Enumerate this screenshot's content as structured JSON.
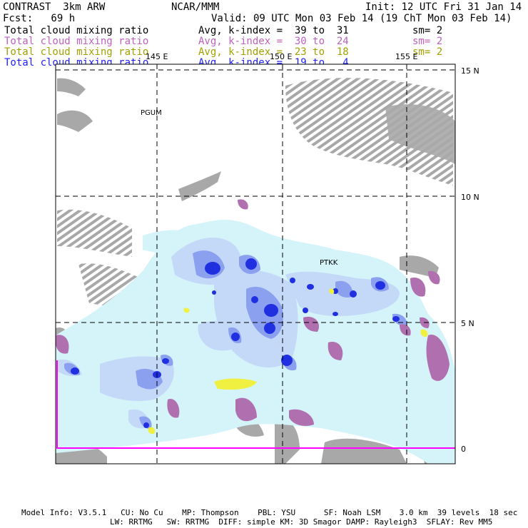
{
  "header": {
    "model": "CONTRAST  3km ARW",
    "org": "NCAR/MMM",
    "init": "Init: 12 UTC Fri 31 Jan 14",
    "fcst": "Fcst:   69 h",
    "valid": "Valid: 09 UTC Mon 03 Feb 14 (19 ChT Mon 03 Feb 14)"
  },
  "legend": {
    "rows": [
      {
        "field": "Total cloud mixing ratio",
        "range": "Avg, k-index =  39 to  31",
        "sm": "sm= 2",
        "color": "#000000"
      },
      {
        "field": "Total cloud mixing ratio",
        "range": "Avg, k-index =  30 to  24",
        "sm": "sm= 2",
        "color": "#c060c0"
      },
      {
        "field": "Total cloud mixing ratio",
        "range": "Avg, k-index =  23 to  18",
        "sm": "sm= 2",
        "color": "#a0a000"
      },
      {
        "field": "Total cloud mixing ratio",
        "range": "Avg, k-index =  19 to   4",
        "sm": "",
        "color": "#2020ff"
      }
    ]
  },
  "map": {
    "lon_labels": [
      "145 E",
      "150 E",
      "155 E"
    ],
    "lat_labels": [
      "15 N",
      "10 N",
      "5 N",
      "0"
    ],
    "stations": [
      "PGUM",
      "PTKK"
    ],
    "colors": {
      "gray": "#a8a8a8",
      "lightcyan": "#d4f4fa",
      "lightblue": "#c4d8f8",
      "midblue": "#8ca0f0",
      "darkblue": "#2030e0",
      "magenta": "#b070b0",
      "yellow": "#f0f040",
      "boundary": "#ff00ff"
    }
  },
  "footer": {
    "line1": "Model Info: V3.5.1   CU: No Cu    MP: Thompson    PBL: YSU      SF: Noah LSM    3.0 km  39 levels  18 sec",
    "line2": "LW: RRTMG   SW: RRTMG  DIFF: simple KM: 3D Smagor DAMP: Rayleigh3  SFLAY: Rev MM5"
  }
}
